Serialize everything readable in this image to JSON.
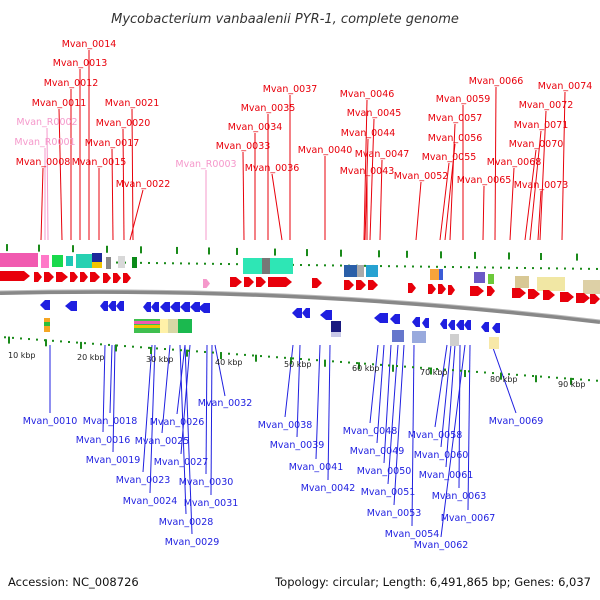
{
  "title": "Mycobacterium vanbaalenii PYR-1, complete genome",
  "footer": {
    "accession": "Accession: NC_008726",
    "summary": "Topology: circular; Length: 6,491,865 bp; Genes: 6,037"
  },
  "colors": {
    "forward_gene": "#e8000b",
    "reverse_gene": "#1f1fe0",
    "rna_gene": "#f598cb",
    "backbone": "#888888",
    "tick": "#1a8a1a"
  },
  "scale_labels": [
    "10 kbp",
    "20 kbp",
    "30 kbp",
    "40 kbp",
    "50 kbp",
    "60 kbp",
    "70 kbp",
    "80 kbp",
    "90 kbp"
  ],
  "top_labels": [
    "Mvan_0014",
    "Mvan_0013",
    "Mvan_0012",
    "Mvan_0011",
    "Mvan_R0002",
    "Mvan_R0001",
    "Mvan_0008",
    "Mvan_0021",
    "Mvan_0020",
    "Mvan_0017",
    "Mvan_0015",
    "Mvan_0022",
    "Mvan_R0003",
    "Mvan_0037",
    "Mvan_0035",
    "Mvan_0034",
    "Mvan_0033",
    "Mvan_0036",
    "Mvan_0040",
    "Mvan_0046",
    "Mvan_0045",
    "Mvan_0044",
    "Mvan_0047",
    "Mvan_0043",
    "Mvan_0052",
    "Mvan_0059",
    "Mvan_0057",
    "Mvan_0056",
    "Mvan_0055",
    "Mvan_0066",
    "Mvan_0068",
    "Mvan_0065",
    "Mvan_0074",
    "Mvan_0072",
    "Mvan_0071",
    "Mvan_0070",
    "Mvan_0073"
  ],
  "bottom_labels": [
    "Mvan_0010",
    "Mvan_0018",
    "Mvan_0016",
    "Mvan_0019",
    "Mvan_0026",
    "Mvan_0025",
    "Mvan_0027",
    "Mvan_0023",
    "Mvan_0030",
    "Mvan_0024",
    "Mvan_0031",
    "Mvan_0028",
    "Mvan_0029",
    "Mvan_0032",
    "Mvan_0038",
    "Mvan_0039",
    "Mvan_0041",
    "Mvan_0042",
    "Mvan_0048",
    "Mvan_0049",
    "Mvan_0050",
    "Mvan_0051",
    "Mvan_0053",
    "Mvan_0054",
    "Mvan_0058",
    "Mvan_0060",
    "Mvan_0061",
    "Mvan_0063",
    "Mvan_0062",
    "Mvan_0067",
    "Mvan_0069"
  ]
}
